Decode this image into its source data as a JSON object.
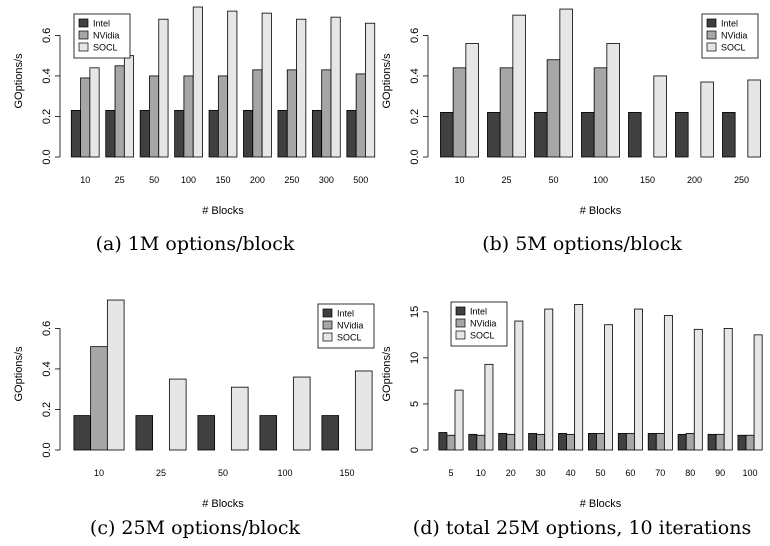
{
  "colors": {
    "intel": "#404040",
    "nvidia": "#a6a6a6",
    "socl": "#e6e6e6",
    "stroke": "#000000"
  },
  "chart_data": [
    {
      "type": "bar",
      "caption": "(a) 1M options/block",
      "xlabel": "# Blocks",
      "ylabel": "GOptions/s",
      "ylim": [
        0,
        0.75
      ],
      "yticks": [
        "0.0",
        "0.2",
        "0.4",
        "0.6"
      ],
      "legend_position": "top-left",
      "categories": [
        "10",
        "25",
        "50",
        "100",
        "150",
        "200",
        "250",
        "300",
        "500"
      ],
      "series": [
        {
          "name": "Intel",
          "values": [
            0.23,
            0.23,
            0.23,
            0.23,
            0.23,
            0.23,
            0.23,
            0.23,
            0.23
          ]
        },
        {
          "name": "NVidia",
          "values": [
            0.39,
            0.45,
            0.4,
            0.4,
            0.4,
            0.43,
            0.43,
            0.43,
            0.41
          ]
        },
        {
          "name": "SOCL",
          "values": [
            0.44,
            0.5,
            0.68,
            0.74,
            0.72,
            0.71,
            0.68,
            0.69,
            0.66
          ]
        }
      ]
    },
    {
      "type": "bar",
      "caption": "(b) 5M options/block",
      "xlabel": "# Blocks",
      "ylabel": "GOptions/s",
      "ylim": [
        0,
        0.75
      ],
      "yticks": [
        "0.0",
        "0.2",
        "0.4",
        "0.6"
      ],
      "legend_position": "top-right",
      "categories": [
        "10",
        "25",
        "50",
        "100",
        "150",
        "200",
        "250"
      ],
      "series": [
        {
          "name": "Intel",
          "values": [
            0.22,
            0.22,
            0.22,
            0.22,
            0.22,
            0.22,
            0.22
          ]
        },
        {
          "name": "NVidia",
          "values": [
            0.44,
            0.44,
            0.48,
            0.44,
            null,
            null,
            null
          ]
        },
        {
          "name": "SOCL",
          "values": [
            0.56,
            0.7,
            0.73,
            0.56,
            0.4,
            0.37,
            0.38
          ]
        }
      ]
    },
    {
      "type": "bar",
      "caption": "(c) 25M options/block",
      "xlabel": "# Blocks",
      "ylabel": "GOptions/s",
      "ylim": [
        0,
        0.75
      ],
      "yticks": [
        "0.0",
        "0.2",
        "0.4",
        "0.6"
      ],
      "legend_position": "top-right",
      "categories": [
        "10",
        "25",
        "50",
        "100",
        "150"
      ],
      "series": [
        {
          "name": "Intel",
          "values": [
            0.17,
            0.17,
            0.17,
            0.17,
            0.17
          ]
        },
        {
          "name": "NVidia",
          "values": [
            0.51,
            null,
            null,
            null,
            null
          ]
        },
        {
          "name": "SOCL",
          "values": [
            0.74,
            0.35,
            0.31,
            0.36,
            0.39
          ]
        }
      ]
    },
    {
      "type": "bar",
      "caption": "(d) total 25M options, 10 iterations",
      "xlabel": "# Blocks",
      "ylabel": "GOptions/s",
      "ylim": [
        0,
        16.5
      ],
      "yticks": [
        "0",
        "5",
        "10",
        "15"
      ],
      "legend_position": "top-left",
      "categories": [
        "5",
        "10",
        "20",
        "30",
        "40",
        "50",
        "60",
        "70",
        "80",
        "90",
        "100"
      ],
      "series": [
        {
          "name": "Intel",
          "values": [
            1.9,
            1.7,
            1.8,
            1.8,
            1.8,
            1.8,
            1.8,
            1.8,
            1.7,
            1.7,
            1.6
          ]
        },
        {
          "name": "NVidia",
          "values": [
            1.6,
            1.6,
            1.7,
            1.7,
            1.7,
            1.8,
            1.8,
            1.8,
            1.8,
            1.7,
            1.6
          ]
        },
        {
          "name": "SOCL",
          "values": [
            6.5,
            9.3,
            14.0,
            15.3,
            15.8,
            13.6,
            15.3,
            14.6,
            13.1,
            13.2,
            12.5
          ]
        }
      ]
    }
  ]
}
